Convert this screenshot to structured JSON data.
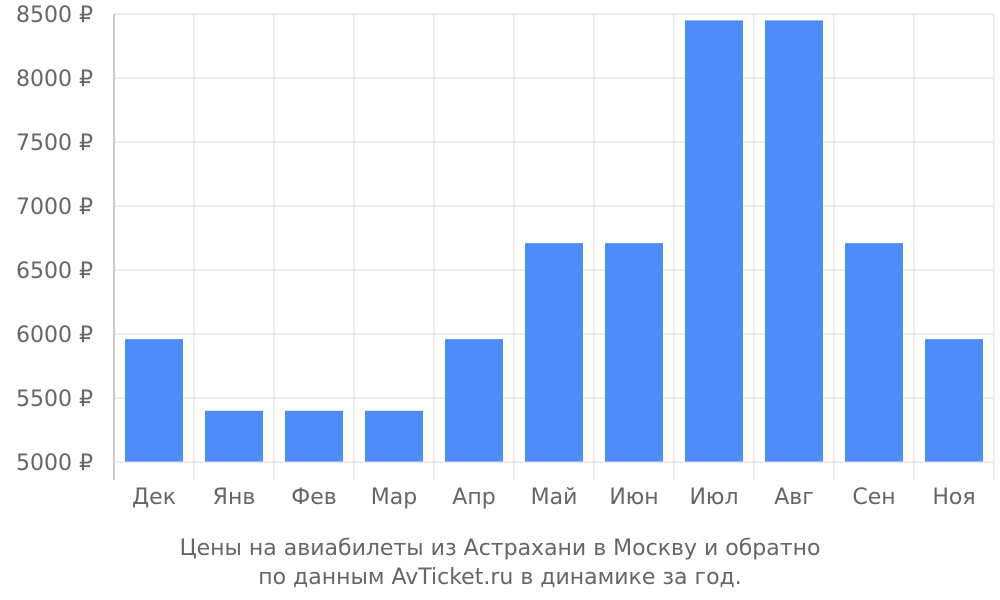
{
  "chart_data": {
    "type": "bar",
    "categories": [
      "Дек",
      "Янв",
      "Фев",
      "Мар",
      "Апр",
      "Май",
      "Июн",
      "Июл",
      "Авг",
      "Сен",
      "Ноя"
    ],
    "values": [
      5960,
      5400,
      5400,
      5400,
      5960,
      6710,
      6710,
      8450,
      8450,
      6710,
      5960
    ],
    "yticks": [
      5000,
      5500,
      6000,
      6500,
      7000,
      7500,
      8000,
      8500
    ],
    "ytick_labels": [
      "5000 ₽",
      "5500 ₽",
      "6000 ₽",
      "6500 ₽",
      "7000 ₽",
      "7500 ₽",
      "8000 ₽",
      "8500 ₽"
    ],
    "ylim": [
      5000,
      8500
    ],
    "grid": true,
    "bar_color": "#4f8bfa",
    "title": "",
    "xlabel": "",
    "ylabel": "",
    "caption_lines": [
      "Цены на авиабилеты из Астрахани в Москву и обратно",
      "по данным AvTicket.ru в динамике за год."
    ]
  }
}
